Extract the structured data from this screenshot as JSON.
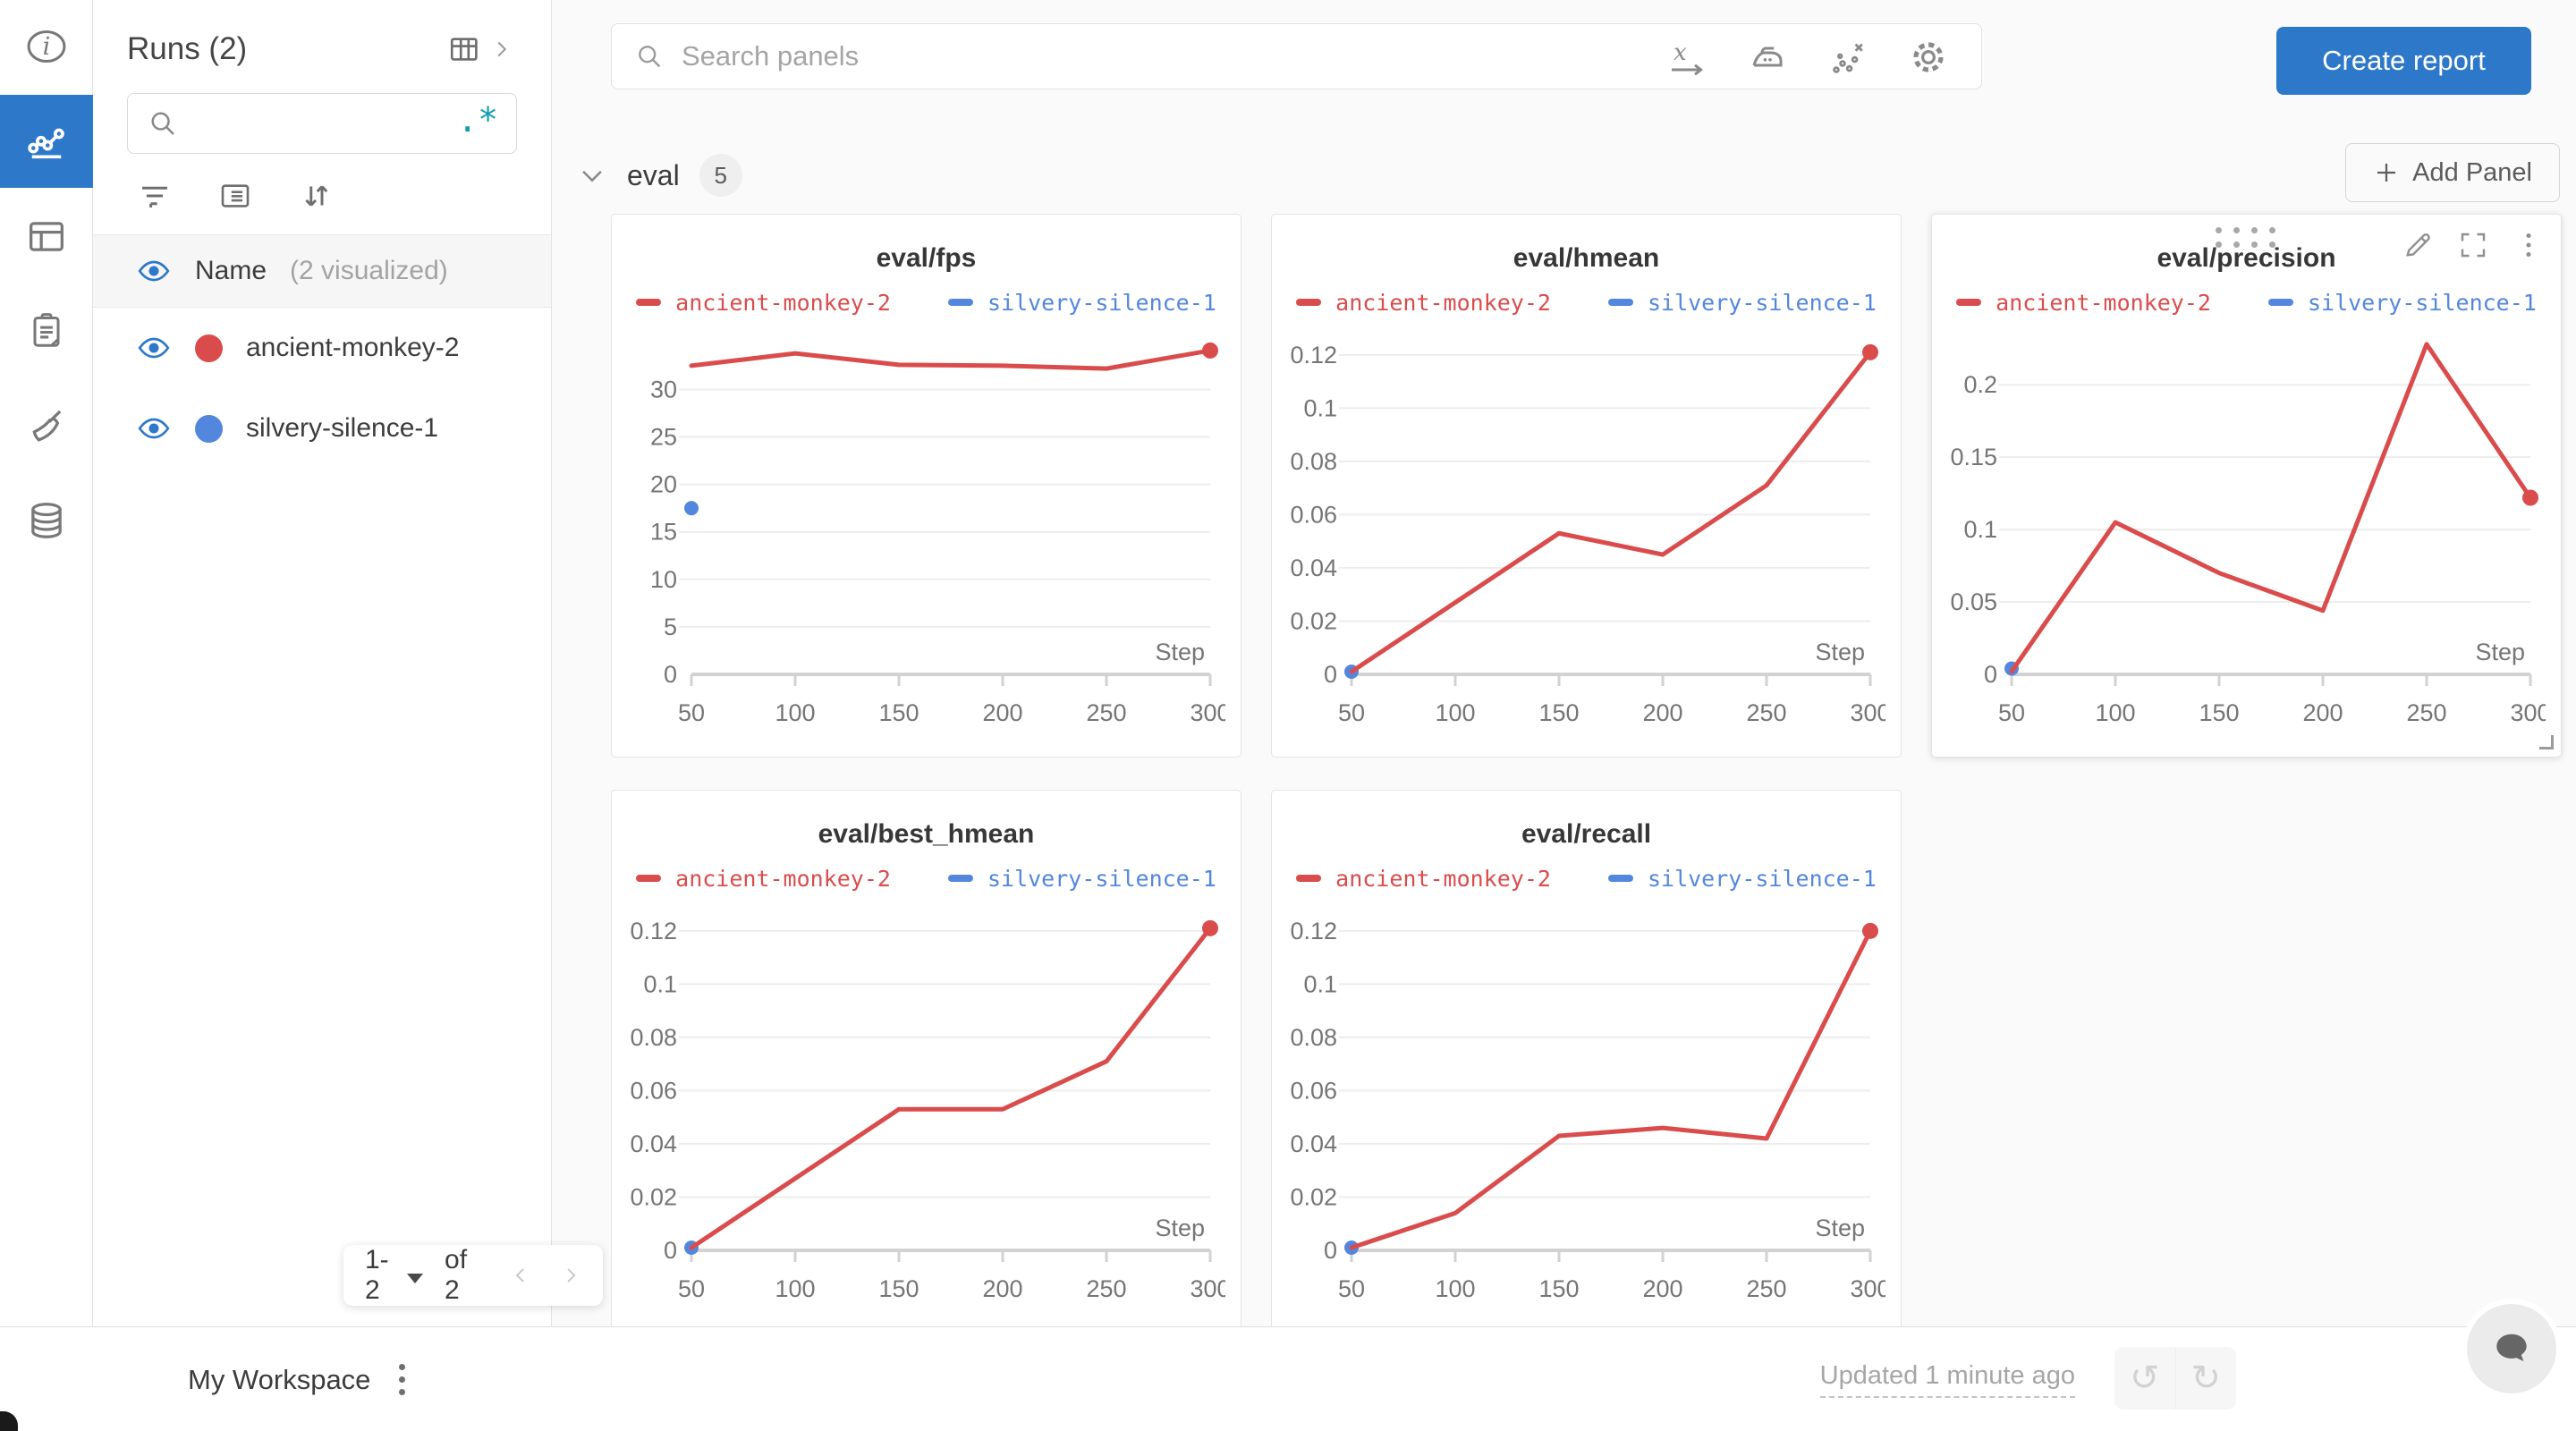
{
  "colors": {
    "accent": "#2d78c9",
    "run_red": "#DA4C4C",
    "run_blue": "#5387DD",
    "teal_regex": "#0e9db0"
  },
  "rail": {
    "items": [
      {
        "icon": "info-icon",
        "active": false
      },
      {
        "icon": "line-chart-icon",
        "active": true
      },
      {
        "icon": "panels-icon",
        "active": false
      },
      {
        "icon": "clipboard-icon",
        "active": false
      },
      {
        "icon": "sweeps-broom-icon",
        "active": false
      },
      {
        "icon": "artifacts-database-icon",
        "active": false
      }
    ]
  },
  "sidebar": {
    "title": "Runs (2)",
    "expand_icon": "runs-table-icon",
    "search": {
      "value": "",
      "placeholder": "",
      "regex_toggle": ".*"
    },
    "tools": [
      "filter-icon",
      "list-settings-icon",
      "sort-icon"
    ],
    "header": {
      "name_label": "Name",
      "visualized_label": "(2 visualized)"
    },
    "runs": [
      {
        "name": "ancient-monkey-2",
        "color": "#DA4C4C",
        "visible": true
      },
      {
        "name": "silvery-silence-1",
        "color": "#5387DD",
        "visible": true
      }
    ],
    "pagination": {
      "range": "1-2",
      "of": "of 2"
    }
  },
  "topbar": {
    "search_placeholder": "Search panels",
    "tools": [
      "x-axis-icon",
      "smoothing-iron-icon",
      "outliers-icon",
      "settings-gear-icon"
    ],
    "create_report_label": "Create report"
  },
  "section": {
    "title": "eval",
    "count": "5",
    "add_panel_label": "Add Panel"
  },
  "chart_data": [
    {
      "type": "line",
      "title": "eval/fps",
      "xlabel": "Step",
      "x": [
        50,
        100,
        150,
        200,
        250,
        300
      ],
      "xticks": [
        50,
        100,
        150,
        200,
        250,
        300
      ],
      "yticks": [
        0,
        5,
        10,
        15,
        20,
        25,
        30
      ],
      "ylim": [
        0,
        35.6
      ],
      "grid": "horizontal",
      "legend_position": "top",
      "series": [
        {
          "name": "ancient-monkey-2",
          "color": "#DA4C4C",
          "values": [
            32.5,
            33.8,
            32.6,
            32.5,
            32.2,
            34.1
          ],
          "end_dot": true
        },
        {
          "name": "silvery-silence-1",
          "color": "#5387DD",
          "points": [
            [
              50,
              17.5
            ]
          ]
        }
      ]
    },
    {
      "type": "line",
      "title": "eval/hmean",
      "xlabel": "Step",
      "x": [
        50,
        100,
        150,
        200,
        250,
        300
      ],
      "xticks": [
        50,
        100,
        150,
        200,
        250,
        300
      ],
      "yticks": [
        0,
        0.02,
        0.04,
        0.06,
        0.08,
        0.1,
        0.12
      ],
      "ylim": [
        0,
        0.127
      ],
      "grid": "horizontal",
      "legend_position": "top",
      "series": [
        {
          "name": "ancient-monkey-2",
          "color": "#DA4C4C",
          "values": [
            0.001,
            0.027,
            0.053,
            0.045,
            0.071,
            0.121
          ],
          "end_dot": true
        },
        {
          "name": "silvery-silence-1",
          "color": "#5387DD",
          "points": [
            [
              50,
              0.001
            ]
          ]
        }
      ]
    },
    {
      "type": "line",
      "title": "eval/precision",
      "xlabel": "Step",
      "x": [
        50,
        100,
        150,
        200,
        250,
        300
      ],
      "xticks": [
        50,
        100,
        150,
        200,
        250,
        300
      ],
      "yticks": [
        0,
        0.05,
        0.1,
        0.15,
        0.2
      ],
      "ylim": [
        0,
        0.2335
      ],
      "grid": "horizontal",
      "legend_position": "top",
      "hovered": true,
      "series": [
        {
          "name": "ancient-monkey-2",
          "color": "#DA4C4C",
          "values": [
            0.002,
            0.105,
            0.07,
            0.044,
            0.228,
            0.122
          ],
          "end_dot": true
        },
        {
          "name": "silvery-silence-1",
          "color": "#5387DD",
          "points": [
            [
              50,
              0.004
            ]
          ]
        }
      ]
    },
    {
      "type": "line",
      "title": "eval/best_hmean",
      "xlabel": "Step",
      "x": [
        50,
        100,
        150,
        200,
        250,
        300
      ],
      "xticks": [
        50,
        100,
        150,
        200,
        250,
        300
      ],
      "yticks": [
        0,
        0.02,
        0.04,
        0.06,
        0.08,
        0.1,
        0.12
      ],
      "ylim": [
        0,
        0.127
      ],
      "grid": "horizontal",
      "legend_position": "top",
      "series": [
        {
          "name": "ancient-monkey-2",
          "color": "#DA4C4C",
          "values": [
            0.001,
            0.027,
            0.053,
            0.053,
            0.071,
            0.121
          ],
          "end_dot": true
        },
        {
          "name": "silvery-silence-1",
          "color": "#5387DD",
          "points": [
            [
              50,
              0.001
            ]
          ]
        }
      ]
    },
    {
      "type": "line",
      "title": "eval/recall",
      "xlabel": "Step",
      "x": [
        50,
        100,
        150,
        200,
        250,
        300
      ],
      "xticks": [
        50,
        100,
        150,
        200,
        250,
        300
      ],
      "yticks": [
        0,
        0.02,
        0.04,
        0.06,
        0.08,
        0.1,
        0.12
      ],
      "ylim": [
        0,
        0.127
      ],
      "grid": "horizontal",
      "legend_position": "top",
      "series": [
        {
          "name": "ancient-monkey-2",
          "color": "#DA4C4C",
          "values": [
            0.001,
            0.014,
            0.043,
            0.046,
            0.042,
            0.12
          ],
          "end_dot": true
        },
        {
          "name": "silvery-silence-1",
          "color": "#5387DD",
          "points": [
            [
              50,
              0.001
            ]
          ]
        }
      ]
    }
  ],
  "footer": {
    "workspace_label": "My Workspace",
    "updated_label": "Updated 1 minute ago",
    "undo_icon": "undo-icon",
    "redo_icon": "redo-icon",
    "chat_icon": "chat-bubble-icon"
  }
}
